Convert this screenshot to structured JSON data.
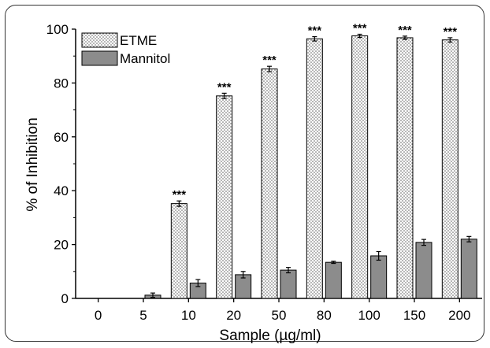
{
  "chart_data": {
    "type": "bar",
    "xlabel": "Sample (µg/ml)",
    "ylabel": "% of Inhibition",
    "ylim": [
      0,
      100
    ],
    "yticks": [
      "0",
      "20",
      "40",
      "60",
      "80",
      "100"
    ],
    "categories": [
      "0",
      "5",
      "10",
      "20",
      "50",
      "80",
      "100",
      "150",
      "200"
    ],
    "series": [
      {
        "name": "ETME",
        "values": [
          0,
          0,
          35.2,
          75.2,
          85.2,
          96.4,
          97.5,
          96.8,
          96.0
        ],
        "errors": [
          0,
          0,
          1.0,
          1.0,
          1.0,
          0.8,
          0.6,
          0.6,
          0.8
        ],
        "significance": [
          "",
          "",
          "***",
          "***",
          "***",
          "***",
          "***",
          "***",
          "***"
        ],
        "fill": "dotted",
        "color": "#ffffff"
      },
      {
        "name": "Mannitol",
        "values": [
          0,
          1.2,
          5.7,
          8.8,
          10.5,
          13.4,
          15.8,
          20.8,
          22.0
        ],
        "errors": [
          0,
          0.8,
          1.3,
          1.2,
          1.0,
          0.4,
          1.6,
          1.1,
          1.0
        ],
        "significance": [
          "",
          "",
          "",
          "",
          "",
          "",
          "",
          "",
          ""
        ],
        "color": "#8c8c8c"
      }
    ],
    "legend": "top-left",
    "grid": false
  }
}
